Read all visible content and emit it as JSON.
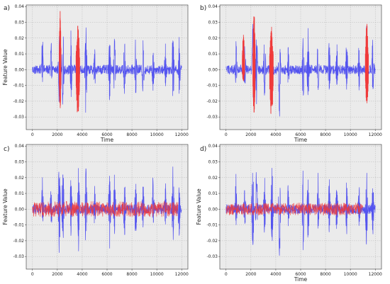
{
  "figure": {
    "colors": {
      "background": "#ebebeb",
      "grid": "#b7b7b7",
      "base_series": "#3a3af0",
      "highlight_series": "#f03a3a"
    }
  },
  "chart_data": [
    {
      "panel_label": "a)",
      "type": "line",
      "xlabel": "Time",
      "ylabel": "Feature Value",
      "xlim": [
        -500,
        12500
      ],
      "ylim": [
        -0.038,
        0.041
      ],
      "xticks": [
        0,
        2000,
        4000,
        6000,
        8000,
        10000,
        12000
      ],
      "yticks": [
        -0.03,
        -0.02,
        -0.01,
        0.0,
        0.01,
        0.02,
        0.03,
        0.04
      ],
      "grid": true,
      "series": [
        {
          "color": "#3a3af0",
          "role": "signal",
          "n_points": 12000,
          "baseline_amplitude": 0.003,
          "bursts": [
            [
              800,
              0.022,
              -0.01
            ],
            [
              1500,
              0.018,
              -0.012
            ],
            [
              2150,
              0.032,
              -0.028
            ],
            [
              2450,
              0.03,
              -0.025
            ],
            [
              3100,
              0.024,
              -0.02
            ],
            [
              4300,
              0.032,
              -0.033
            ],
            [
              5000,
              0.016,
              -0.012
            ],
            [
              6200,
              0.027,
              -0.028
            ],
            [
              6600,
              0.025,
              -0.022
            ],
            [
              7400,
              0.022,
              -0.018
            ],
            [
              8300,
              0.024,
              -0.022
            ],
            [
              8900,
              0.02,
              -0.018
            ],
            [
              9700,
              0.021,
              -0.015
            ],
            [
              10700,
              0.018,
              -0.012
            ],
            [
              11300,
              0.03,
              -0.028
            ],
            [
              11800,
              0.022,
              -0.02
            ]
          ]
        },
        {
          "color": "#f03a3a",
          "role": "highlight",
          "segments": [
            [
              2150,
              2300,
              0.038,
              -0.026
            ],
            [
              3500,
              3800,
              0.028,
              -0.03
            ]
          ]
        }
      ]
    },
    {
      "panel_label": "b)",
      "type": "line",
      "xlabel": "Time",
      "ylabel": "",
      "xlim": [
        -500,
        12500
      ],
      "ylim": [
        -0.038,
        0.041
      ],
      "xticks": [
        0,
        2000,
        4000,
        6000,
        8000,
        10000,
        12000
      ],
      "yticks": [
        -0.03,
        -0.02,
        -0.01,
        0.0,
        0.01,
        0.02,
        0.03,
        0.04
      ],
      "grid": true,
      "series": [
        {
          "color": "#3a3af0",
          "role": "signal",
          "n_points": 12000,
          "baseline_amplitude": 0.003,
          "bursts": [
            [
              800,
              0.022,
              -0.01
            ],
            [
              1500,
              0.018,
              -0.012
            ],
            [
              2150,
              0.032,
              -0.028
            ],
            [
              2450,
              0.03,
              -0.025
            ],
            [
              3100,
              0.024,
              -0.02
            ],
            [
              4300,
              0.032,
              -0.033
            ],
            [
              5000,
              0.016,
              -0.012
            ],
            [
              6200,
              0.027,
              -0.028
            ],
            [
              6600,
              0.025,
              -0.022
            ],
            [
              7400,
              0.022,
              -0.018
            ],
            [
              8300,
              0.024,
              -0.022
            ],
            [
              8900,
              0.02,
              -0.018
            ],
            [
              9700,
              0.021,
              -0.015
            ],
            [
              10700,
              0.018,
              -0.012
            ],
            [
              11300,
              0.03,
              -0.028
            ],
            [
              11800,
              0.022,
              -0.02
            ]
          ]
        },
        {
          "color": "#f03a3a",
          "role": "highlight",
          "segments": [
            [
              1300,
              1500,
              0.023,
              -0.008
            ],
            [
              2150,
              2350,
              0.038,
              -0.028
            ],
            [
              3500,
              3800,
              0.028,
              -0.032
            ],
            [
              11200,
              11450,
              0.03,
              -0.024
            ]
          ]
        }
      ]
    },
    {
      "panel_label": "c)",
      "type": "line",
      "xlabel": "",
      "ylabel": "Feature Value",
      "xlim": [
        -500,
        12500
      ],
      "ylim": [
        -0.038,
        0.041
      ],
      "xticks": [
        0,
        2000,
        4000,
        6000,
        8000,
        10000,
        12000
      ],
      "yticks": [
        -0.03,
        -0.02,
        -0.01,
        0.0,
        0.01,
        0.02,
        0.03,
        0.04
      ],
      "grid": true,
      "series": [
        {
          "color": "#3a3af0",
          "role": "signal",
          "n_points": 12000,
          "baseline_amplitude": 0.003,
          "bursts": [
            [
              800,
              0.022,
              -0.01
            ],
            [
              1500,
              0.018,
              -0.012
            ],
            [
              2150,
              0.038,
              -0.032
            ],
            [
              2450,
              0.03,
              -0.025
            ],
            [
              3100,
              0.024,
              -0.02
            ],
            [
              3700,
              0.033,
              -0.03
            ],
            [
              4300,
              0.032,
              -0.034
            ],
            [
              5000,
              0.016,
              -0.012
            ],
            [
              6200,
              0.027,
              -0.028
            ],
            [
              6600,
              0.025,
              -0.022
            ],
            [
              7400,
              0.022,
              -0.018
            ],
            [
              8300,
              0.024,
              -0.022
            ],
            [
              8900,
              0.02,
              -0.018
            ],
            [
              9700,
              0.021,
              -0.015
            ],
            [
              10700,
              0.018,
              -0.012
            ],
            [
              11300,
              0.03,
              -0.028
            ],
            [
              11800,
              0.022,
              -0.02
            ]
          ]
        },
        {
          "color": "#f03a3a",
          "role": "highlight",
          "noise_band": [
            0,
            11700,
            0.005
          ]
        }
      ]
    },
    {
      "panel_label": "d)",
      "type": "line",
      "xlabel": "Time",
      "ylabel": "Feature Value",
      "xlim": [
        -500,
        12500
      ],
      "ylim": [
        -0.038,
        0.041
      ],
      "xticks": [
        0,
        2000,
        4000,
        6000,
        8000,
        10000,
        12000
      ],
      "yticks": [
        -0.03,
        -0.02,
        -0.01,
        0.0,
        0.01,
        0.02,
        0.03,
        0.04
      ],
      "grid": true,
      "series": [
        {
          "color": "#3a3af0",
          "role": "signal",
          "n_points": 12000,
          "baseline_amplitude": 0.003,
          "bursts": [
            [
              800,
              0.022,
              -0.01
            ],
            [
              1500,
              0.018,
              -0.012
            ],
            [
              2150,
              0.038,
              -0.032
            ],
            [
              2450,
              0.03,
              -0.025
            ],
            [
              3100,
              0.024,
              -0.02
            ],
            [
              3700,
              0.033,
              -0.03
            ],
            [
              4300,
              0.032,
              -0.034
            ],
            [
              5000,
              0.016,
              -0.012
            ],
            [
              6200,
              0.027,
              -0.028
            ],
            [
              6600,
              0.025,
              -0.022
            ],
            [
              7400,
              0.022,
              -0.018
            ],
            [
              8300,
              0.024,
              -0.022
            ],
            [
              8900,
              0.02,
              -0.018
            ],
            [
              9700,
              0.021,
              -0.015
            ],
            [
              10700,
              0.018,
              -0.012
            ],
            [
              11300,
              0.03,
              -0.028
            ],
            [
              11800,
              0.022,
              -0.02
            ]
          ]
        },
        {
          "color": "#f03a3a",
          "role": "highlight",
          "noise_band": [
            0,
            11000,
            0.004
          ]
        }
      ]
    }
  ]
}
